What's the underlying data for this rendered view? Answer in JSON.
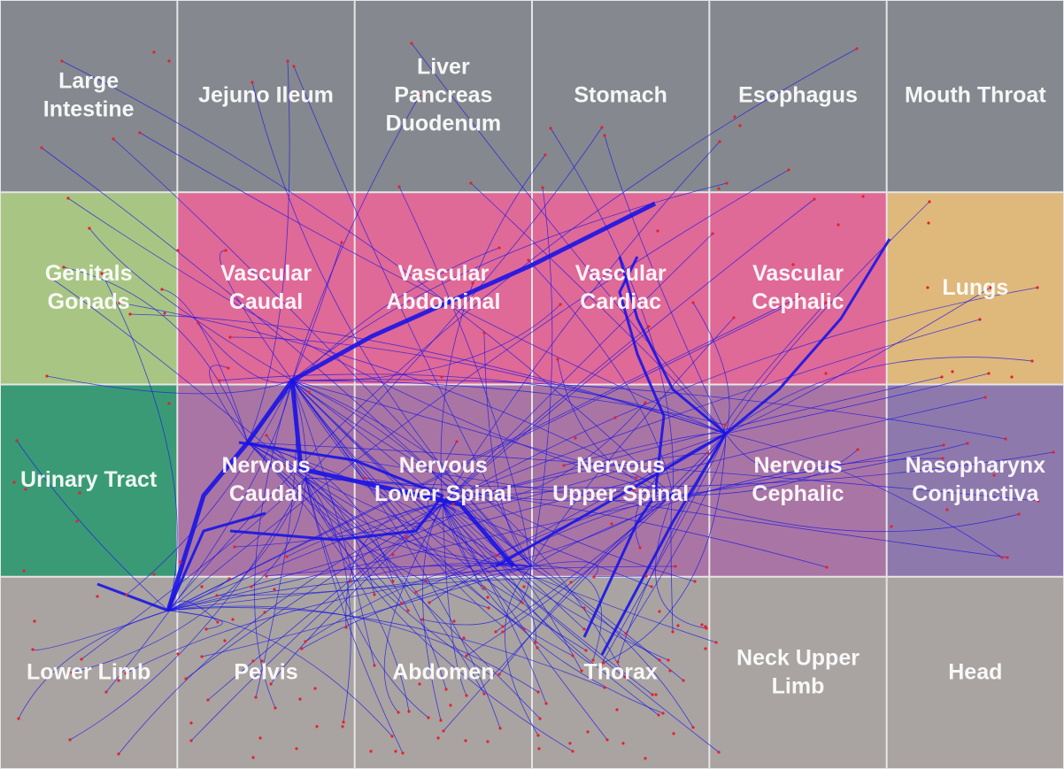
{
  "grid": {
    "rows": [
      {
        "color": "#85888e",
        "cells": [
          {
            "label": [
              "Large",
              "Intestine"
            ]
          },
          {
            "label": [
              "Jejuno Ileum"
            ]
          },
          {
            "label": [
              "Liver",
              "Pancreas",
              "Duodenum"
            ]
          },
          {
            "label": [
              "Stomach"
            ]
          },
          {
            "label": [
              "Esophagus"
            ]
          },
          {
            "label": [
              "Mouth Throat"
            ]
          }
        ]
      },
      {
        "cells": [
          {
            "label": [
              "Genitals",
              "Gonads"
            ],
            "color": "#a8c584"
          },
          {
            "label": [
              "Vascular",
              "Caudal"
            ],
            "color": "#df6997"
          },
          {
            "label": [
              "Vascular",
              "Abdominal"
            ],
            "color": "#df6997"
          },
          {
            "label": [
              "Vascular",
              "Cardiac"
            ],
            "color": "#df6997"
          },
          {
            "label": [
              "Vascular",
              "Cephalic"
            ],
            "color": "#df6997"
          },
          {
            "label": [
              "Lungs"
            ],
            "color": "#dfb87c"
          }
        ]
      },
      {
        "cells": [
          {
            "label": [
              "Urinary Tract"
            ],
            "color": "#3a9a76"
          },
          {
            "label": [
              "Nervous",
              "Caudal"
            ],
            "color": "#a975a4"
          },
          {
            "label": [
              "Nervous",
              "Lower Spinal"
            ],
            "color": "#a975a4"
          },
          {
            "label": [
              "Nervous",
              "Upper Spinal"
            ],
            "color": "#a975a4"
          },
          {
            "label": [
              "Nervous",
              "Cephalic"
            ],
            "color": "#a975a4"
          },
          {
            "label": [
              "Nasopharynx",
              "Conjunctiva"
            ],
            "color": "#8e79ac"
          }
        ]
      },
      {
        "color": "#a9a3a2",
        "cells": [
          {
            "label": [
              "Lower Limb"
            ]
          },
          {
            "label": [
              "Pelvis"
            ]
          },
          {
            "label": [
              "Abdomen"
            ]
          },
          {
            "label": [
              "Thorax"
            ]
          },
          {
            "label": [
              "Neck Upper",
              "Limb"
            ]
          },
          {
            "label": [
              "Head"
            ]
          }
        ]
      }
    ]
  },
  "colors": {
    "grid_line": "#e6e6e6",
    "edge": "#1a14e6",
    "node": "#e8202a"
  }
}
